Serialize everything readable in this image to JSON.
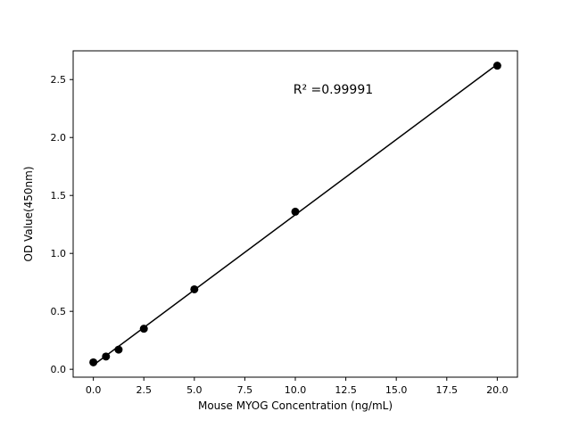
{
  "chart_data": {
    "type": "scatter",
    "title": "",
    "xlabel": "Mouse MYOG Concentration (ng/mL)",
    "ylabel": "OD Value(450nm)",
    "x": [
      0,
      0.625,
      1.25,
      2.5,
      5,
      10,
      20
    ],
    "y": [
      0.06,
      0.11,
      0.17,
      0.35,
      0.69,
      1.36,
      2.62
    ],
    "fit_line": true,
    "annotation": {
      "text": "R² =0.99991",
      "x": 9.9,
      "y": 2.38
    },
    "xticks": [
      "0.0",
      "2.5",
      "5.0",
      "7.5",
      "10.0",
      "12.5",
      "15.0",
      "17.5",
      "20.0"
    ],
    "xtick_values": [
      0,
      2.5,
      5,
      7.5,
      10,
      12.5,
      15,
      17.5,
      20
    ],
    "yticks": [
      "0.0",
      "0.5",
      "1.0",
      "1.5",
      "2.0",
      "2.5"
    ],
    "ytick_values": [
      0,
      0.5,
      1,
      1.5,
      2,
      2.5
    ],
    "xlim": [
      -1,
      21
    ],
    "ylim": [
      -0.068,
      2.748
    ],
    "grid": false,
    "legend": "none",
    "marker_color": "#000000",
    "line_color": "#000000",
    "axis_color": "#000000",
    "background": "#ffffff"
  }
}
